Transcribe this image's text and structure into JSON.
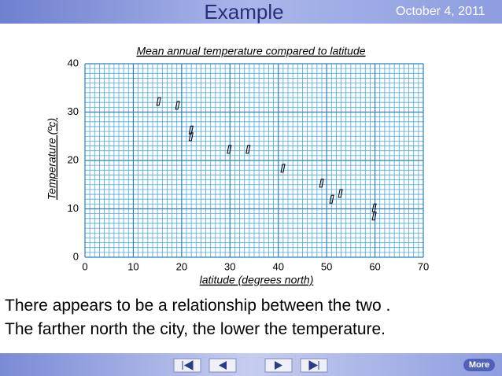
{
  "slide": {
    "title": "Example",
    "date": "October 4, 2011",
    "body": [
      "There appears to be a relationship between the two .",
      "The farther north the city, the lower the temperature."
    ],
    "more": "More"
  },
  "chart_data": {
    "type": "scatter",
    "title": "Mean annual temperature compared to latitude",
    "x_label": "latitude (degrees north)",
    "y_label": "Temperature (ºc)",
    "x": [
      15.0,
      18.9,
      21.7,
      21.7,
      29.6,
      33.5,
      40.7,
      48.7,
      50.8,
      52.6,
      59.6,
      59.6
    ],
    "values": [
      32.2,
      31.4,
      26.3,
      24.9,
      22.3,
      22.3,
      18.4,
      15.3,
      12.0,
      13.2,
      10.2,
      8.5
    ],
    "color": "#000000",
    "xlim": [
      0,
      70
    ],
    "xticks": [
      0,
      10,
      20,
      30,
      40,
      50,
      60,
      70
    ],
    "ylim": [
      0,
      40
    ],
    "yticks": [
      0,
      10,
      20,
      30,
      40
    ],
    "grid": true
  }
}
